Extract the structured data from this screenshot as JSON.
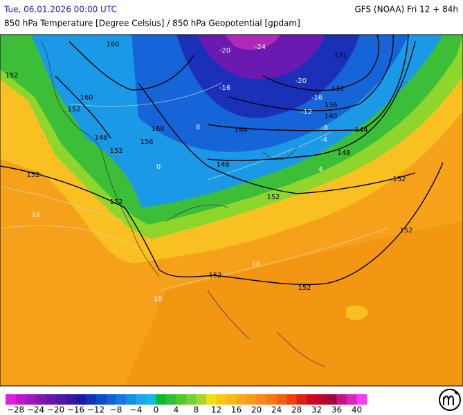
{
  "header": {
    "left": "Tue, 06.01.2026 00:00 UTC",
    "right": "GFS (NOAA) Fri 12 + 84h",
    "subtitle": "850 hPa Temperature [Degree Celsius] / 850 hPa Geopotential [gpdam]"
  },
  "geopotential_labels": [
    160,
    152,
    160,
    152,
    148,
    152,
    156,
    160,
    152,
    152,
    148,
    144,
    152,
    144,
    148,
    140,
    136,
    132,
    152,
    152,
    152,
    152,
    121
  ],
  "temperature_labels": [
    -24,
    -20,
    -20,
    -16,
    -16,
    -12,
    -8,
    -4,
    0,
    8,
    4,
    16,
    16,
    16
  ],
  "colorbar": {
    "labels": [
      "−28",
      "−24",
      "−20",
      "−16",
      "−12",
      "−8",
      "−4",
      "0",
      "4",
      "8",
      "12",
      "16",
      "20",
      "24",
      "28",
      "32",
      "36",
      "40"
    ],
    "colors": [
      "#e020e0",
      "#c018c8",
      "#a018b8",
      "#8018b0",
      "#6818a8",
      "#5018a8",
      "#3818a0",
      "#2018a0",
      "#1030c0",
      "#1048d0",
      "#1060d8",
      "#1478e0",
      "#1890e0",
      "#18a8e8",
      "#18b8e0",
      "#10b830",
      "#30c030",
      "#50c830",
      "#78d030",
      "#a0d830",
      "#f0e010",
      "#f8c818",
      "#f8b818",
      "#f8a818",
      "#f89818",
      "#f88818",
      "#f87818",
      "#f06010",
      "#e84010",
      "#e02010",
      "#d00820",
      "#b80830",
      "#a00838",
      "#c01880",
      "#e020c0",
      "#f040f0"
    ]
  }
}
